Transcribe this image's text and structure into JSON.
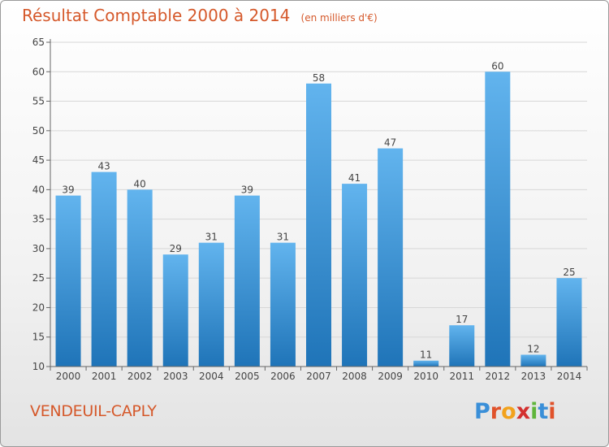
{
  "colors": {
    "title": "#d5582a",
    "bar_light": "#62b4ee",
    "bar_dark": "#1f74b8",
    "grid": "#d7d7d7",
    "axis": "#666666",
    "text": "#444444"
  },
  "chart_data": {
    "type": "bar",
    "title": "Résultat Comptable 2000 à 2014",
    "subtitle": "(en milliers d'€)",
    "xlabel": "",
    "ylabel": "",
    "categories": [
      "2000",
      "2001",
      "2002",
      "2003",
      "2004",
      "2005",
      "2006",
      "2007",
      "2008",
      "2009",
      "2010",
      "2011",
      "2012",
      "2013",
      "2014"
    ],
    "values": [
      39,
      43,
      40,
      29,
      31,
      39,
      31,
      58,
      41,
      47,
      11,
      17,
      60,
      12,
      25
    ],
    "ylim": [
      10,
      65
    ],
    "yticks": [
      10,
      15,
      20,
      25,
      30,
      35,
      40,
      45,
      50,
      55,
      60,
      65
    ],
    "grid": true,
    "legend": "none"
  },
  "footer": {
    "commune": "VENDEUIL-CAPLY",
    "logo_text": "Proxiti"
  }
}
